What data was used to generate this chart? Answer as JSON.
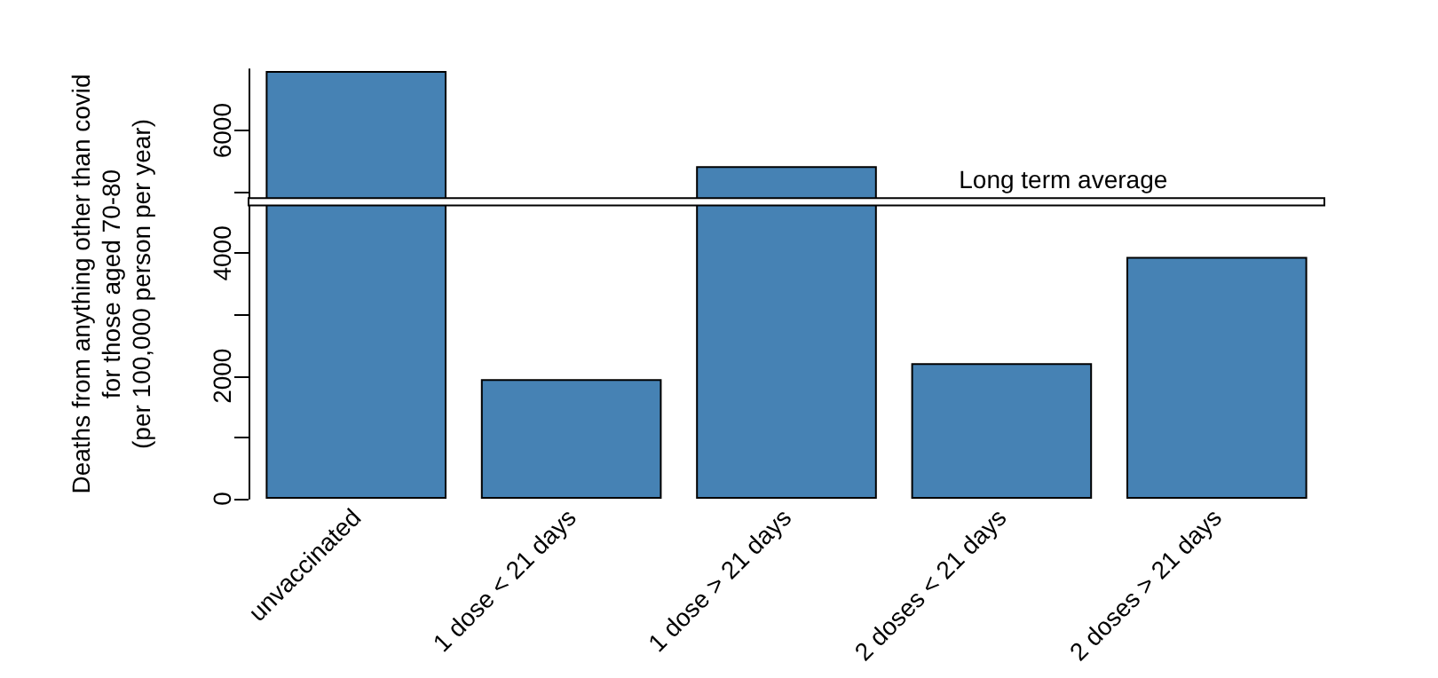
{
  "chart_data": {
    "type": "bar",
    "ylabel": "Deaths from anything other than covid\nfor those aged 70-80\n(per 100,000 person per year)",
    "categories": [
      "unvaccinated",
      "1 dose < 21 days",
      "1 dose > 21 days",
      "2 doses < 21 days",
      "2 doses > 21 days"
    ],
    "values": [
      6970,
      1950,
      5420,
      2210,
      3940
    ],
    "color": "#4682b4",
    "ylim": [
      0,
      7000
    ],
    "yticks": [
      0,
      {
        "value": 1000,
        "label": null
      },
      2000,
      {
        "value": 3000,
        "label": null
      },
      4000,
      {
        "value": 5000,
        "label": null
      },
      6000
    ],
    "bands": [
      {
        "axis": "y",
        "from": 4780,
        "to": 4900,
        "label": "Long term average",
        "color": "#ffffff"
      }
    ],
    "grid": false
  }
}
